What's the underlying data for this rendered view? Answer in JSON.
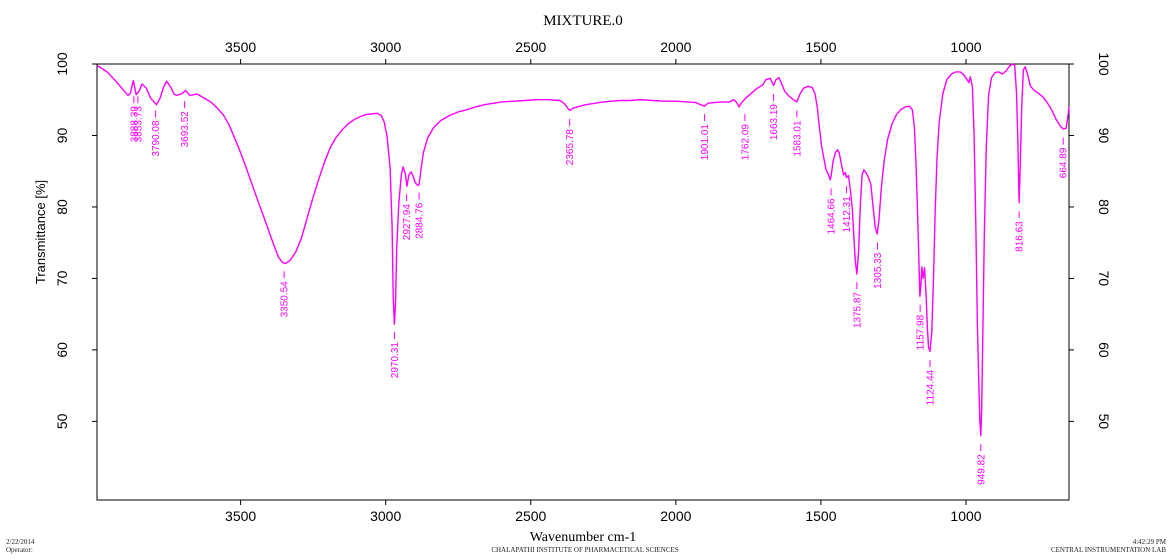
{
  "chart_data": {
    "type": "line",
    "title": "MIXTURE.0",
    "xlabel": "Wavenumber cm-1",
    "ylabel": "Transmittance [%]",
    "xlim": [
      3995,
      645
    ],
    "ylim": [
      39,
      100
    ],
    "x_ticks": [
      3500,
      3000,
      2500,
      2000,
      1500,
      1000
    ],
    "y_ticks": [
      50,
      60,
      70,
      80,
      90,
      100
    ],
    "grid": false,
    "line_color": "#ff00ff",
    "series": [
      {
        "points": [
          [
            3995,
            99.8
          ],
          [
            3960,
            98.9
          ],
          [
            3930,
            97.6
          ],
          [
            3905,
            96.4
          ],
          [
            3888,
            95.6
          ],
          [
            3880,
            95.9
          ],
          [
            3870,
            97.7
          ],
          [
            3860,
            95.7
          ],
          [
            3850,
            96.2
          ],
          [
            3840,
            97.2
          ],
          [
            3825,
            96.6
          ],
          [
            3810,
            95.2
          ],
          [
            3790,
            94.3
          ],
          [
            3778,
            95.2
          ],
          [
            3765,
            96.8
          ],
          [
            3755,
            97.6
          ],
          [
            3740,
            96.7
          ],
          [
            3730,
            95.8
          ],
          [
            3720,
            95.6
          ],
          [
            3700,
            95.9
          ],
          [
            3690,
            96.3
          ],
          [
            3675,
            95.6
          ],
          [
            3650,
            95.8
          ],
          [
            3620,
            95.1
          ],
          [
            3600,
            94.6
          ],
          [
            3580,
            93.8
          ],
          [
            3560,
            92.9
          ],
          [
            3540,
            91.5
          ],
          [
            3520,
            89.6
          ],
          [
            3500,
            87.6
          ],
          [
            3480,
            85.4
          ],
          [
            3460,
            83.1
          ],
          [
            3440,
            80.8
          ],
          [
            3420,
            78.6
          ],
          [
            3400,
            76.3
          ],
          [
            3385,
            74.6
          ],
          [
            3370,
            73.0
          ],
          [
            3355,
            72.2
          ],
          [
            3345,
            72.1
          ],
          [
            3330,
            72.5
          ],
          [
            3310,
            73.7
          ],
          [
            3290,
            75.7
          ],
          [
            3270,
            78.6
          ],
          [
            3250,
            81.4
          ],
          [
            3230,
            84.0
          ],
          [
            3210,
            86.4
          ],
          [
            3190,
            88.4
          ],
          [
            3170,
            89.8
          ],
          [
            3150,
            90.8
          ],
          [
            3130,
            91.6
          ],
          [
            3110,
            92.2
          ],
          [
            3090,
            92.6
          ],
          [
            3070,
            92.9
          ],
          [
            3050,
            93.0
          ],
          [
            3030,
            93.1
          ],
          [
            3015,
            92.8
          ],
          [
            3005,
            91.9
          ],
          [
            2995,
            89.8
          ],
          [
            2985,
            85.5
          ],
          [
            2978,
            77.2
          ],
          [
            2974,
            67.5
          ],
          [
            2970,
            63.6
          ],
          [
            2966,
            66.8
          ],
          [
            2962,
            74.2
          ],
          [
            2955,
            80.5
          ],
          [
            2946,
            84.6
          ],
          [
            2940,
            85.6
          ],
          [
            2932,
            84.6
          ],
          [
            2927,
            82.9
          ],
          [
            2920,
            84.5
          ],
          [
            2912,
            84.9
          ],
          [
            2905,
            84.2
          ],
          [
            2898,
            83.4
          ],
          [
            2890,
            83.0
          ],
          [
            2885,
            83.1
          ],
          [
            2878,
            85.4
          ],
          [
            2870,
            87.6
          ],
          [
            2855,
            89.7
          ],
          [
            2835,
            91.1
          ],
          [
            2810,
            92.1
          ],
          [
            2780,
            92.8
          ],
          [
            2750,
            93.3
          ],
          [
            2720,
            93.6
          ],
          [
            2690,
            94.0
          ],
          [
            2660,
            94.3
          ],
          [
            2630,
            94.5
          ],
          [
            2600,
            94.7
          ],
          [
            2560,
            94.8
          ],
          [
            2520,
            94.9
          ],
          [
            2480,
            95.0
          ],
          [
            2440,
            95.0
          ],
          [
            2400,
            94.9
          ],
          [
            2385,
            94.5
          ],
          [
            2370,
            93.7
          ],
          [
            2365,
            93.5
          ],
          [
            2355,
            93.8
          ],
          [
            2340,
            94.0
          ],
          [
            2310,
            94.3
          ],
          [
            2280,
            94.5
          ],
          [
            2250,
            94.7
          ],
          [
            2220,
            94.8
          ],
          [
            2190,
            94.9
          ],
          [
            2160,
            94.9
          ],
          [
            2120,
            95.0
          ],
          [
            2080,
            94.9
          ],
          [
            2040,
            94.8
          ],
          [
            2000,
            94.8
          ],
          [
            1960,
            94.7
          ],
          [
            1930,
            94.6
          ],
          [
            1915,
            94.3
          ],
          [
            1901,
            94.1
          ],
          [
            1890,
            94.5
          ],
          [
            1870,
            94.6
          ],
          [
            1840,
            94.7
          ],
          [
            1815,
            94.7
          ],
          [
            1800,
            95.0
          ],
          [
            1790,
            94.6
          ],
          [
            1782,
            94.0
          ],
          [
            1775,
            94.5
          ],
          [
            1760,
            95.2
          ],
          [
            1740,
            95.9
          ],
          [
            1720,
            96.6
          ],
          [
            1700,
            97.1
          ],
          [
            1690,
            97.8
          ],
          [
            1675,
            98.0
          ],
          [
            1663,
            97.0
          ],
          [
            1655,
            97.8
          ],
          [
            1645,
            98.1
          ],
          [
            1635,
            97.2
          ],
          [
            1625,
            96.2
          ],
          [
            1610,
            95.5
          ],
          [
            1595,
            95.0
          ],
          [
            1583,
            94.7
          ],
          [
            1572,
            95.8
          ],
          [
            1560,
            96.6
          ],
          [
            1545,
            96.9
          ],
          [
            1530,
            96.7
          ],
          [
            1520,
            95.8
          ],
          [
            1512,
            93.8
          ],
          [
            1505,
            91.0
          ],
          [
            1498,
            88.6
          ],
          [
            1490,
            86.8
          ],
          [
            1482,
            85.2
          ],
          [
            1475,
            84.6
          ],
          [
            1468,
            83.8
          ],
          [
            1465,
            84.3
          ],
          [
            1458,
            86.4
          ],
          [
            1450,
            87.6
          ],
          [
            1443,
            88.0
          ],
          [
            1437,
            87.6
          ],
          [
            1430,
            86.1
          ],
          [
            1422,
            84.5
          ],
          [
            1416,
            84.8
          ],
          [
            1412,
            84.1
          ],
          [
            1405,
            84.4
          ],
          [
            1398,
            82.2
          ],
          [
            1392,
            79.8
          ],
          [
            1387,
            76.2
          ],
          [
            1382,
            72.6
          ],
          [
            1376,
            70.6
          ],
          [
            1370,
            73.8
          ],
          [
            1364,
            80.5
          ],
          [
            1358,
            84.5
          ],
          [
            1352,
            85.2
          ],
          [
            1345,
            84.8
          ],
          [
            1337,
            84.2
          ],
          [
            1328,
            83.2
          ],
          [
            1320,
            80.0
          ],
          [
            1313,
            77.2
          ],
          [
            1306,
            76.2
          ],
          [
            1300,
            78.2
          ],
          [
            1292,
            82.6
          ],
          [
            1282,
            86.5
          ],
          [
            1270,
            89.5
          ],
          [
            1255,
            91.6
          ],
          [
            1240,
            92.9
          ],
          [
            1225,
            93.6
          ],
          [
            1210,
            94.0
          ],
          [
            1195,
            94.1
          ],
          [
            1185,
            93.6
          ],
          [
            1178,
            91.2
          ],
          [
            1173,
            86.8
          ],
          [
            1168,
            80.5
          ],
          [
            1163,
            73.5
          ],
          [
            1159,
            67.5
          ],
          [
            1156,
            68.6
          ],
          [
            1152,
            71.6
          ],
          [
            1148,
            70.0
          ],
          [
            1143,
            71.5
          ],
          [
            1138,
            68.0
          ],
          [
            1133,
            63.0
          ],
          [
            1129,
            60.3
          ],
          [
            1124,
            59.8
          ],
          [
            1118,
            62.5
          ],
          [
            1112,
            70.0
          ],
          [
            1106,
            79.5
          ],
          [
            1100,
            86.8
          ],
          [
            1092,
            92.0
          ],
          [
            1080,
            95.8
          ],
          [
            1066,
            97.8
          ],
          [
            1050,
            98.6
          ],
          [
            1035,
            98.9
          ],
          [
            1020,
            98.9
          ],
          [
            1008,
            98.5
          ],
          [
            998,
            97.9
          ],
          [
            990,
            97.4
          ],
          [
            985,
            98.2
          ],
          [
            978,
            96.8
          ],
          [
            972,
            90.0
          ],
          [
            966,
            77.0
          ],
          [
            961,
            64.0
          ],
          [
            956,
            55.5
          ],
          [
            952,
            50.0
          ],
          [
            949,
            48.0
          ],
          [
            946,
            52.0
          ],
          [
            942,
            62.0
          ],
          [
            937,
            76.0
          ],
          [
            930,
            88.5
          ],
          [
            922,
            95.6
          ],
          [
            912,
            98.1
          ],
          [
            900,
            98.8
          ],
          [
            888,
            98.9
          ],
          [
            875,
            98.6
          ],
          [
            862,
            99.0
          ],
          [
            850,
            99.7
          ],
          [
            840,
            100.0
          ],
          [
            832,
            99.8
          ],
          [
            826,
            96.0
          ],
          [
            821,
            89.0
          ],
          [
            817,
            80.6
          ],
          [
            813,
            86.0
          ],
          [
            808,
            94.0
          ],
          [
            802,
            99.2
          ],
          [
            796,
            99.6
          ],
          [
            788,
            98.6
          ],
          [
            778,
            96.9
          ],
          [
            765,
            96.3
          ],
          [
            750,
            95.9
          ],
          [
            735,
            95.4
          ],
          [
            720,
            94.6
          ],
          [
            705,
            93.6
          ],
          [
            690,
            92.3
          ],
          [
            675,
            91.3
          ],
          [
            665,
            90.9
          ],
          [
            655,
            91.0
          ],
          [
            650,
            92.3
          ],
          [
            645,
            94.0
          ]
        ]
      }
    ],
    "peak_labels": [
      {
        "x": 3868,
        "y": 95.5,
        "text": "3888.39"
      },
      {
        "x": 3854,
        "y": 95.5,
        "text": "3853.73"
      },
      {
        "x": 3793,
        "y": 93.5,
        "text": "3790.08"
      },
      {
        "x": 3693,
        "y": 94.8,
        "text": "3693.52"
      },
      {
        "x": 3350,
        "y": 71.0,
        "text": "3350.54"
      },
      {
        "x": 2970,
        "y": 62.5,
        "text": "2970.31"
      },
      {
        "x": 2928,
        "y": 81.8,
        "text": "2927.94"
      },
      {
        "x": 2885,
        "y": 82.0,
        "text": "2884.76"
      },
      {
        "x": 2366,
        "y": 92.3,
        "text": "2365.78"
      },
      {
        "x": 1901,
        "y": 93.0,
        "text": "1901.01"
      },
      {
        "x": 1762,
        "y": 93.0,
        "text": "1762.09"
      },
      {
        "x": 1663,
        "y": 95.8,
        "text": "1663.19"
      },
      {
        "x": 1583,
        "y": 93.5,
        "text": "1583.01"
      },
      {
        "x": 1465,
        "y": 82.6,
        "text": "1464.66"
      },
      {
        "x": 1412,
        "y": 82.9,
        "text": "1412.31"
      },
      {
        "x": 1376,
        "y": 69.5,
        "text": "1375.87"
      },
      {
        "x": 1305,
        "y": 75.0,
        "text": "1305.33"
      },
      {
        "x": 1158,
        "y": 66.3,
        "text": "1157.98"
      },
      {
        "x": 1124,
        "y": 58.6,
        "text": "1124.44"
      },
      {
        "x": 949,
        "y": 46.8,
        "text": "949.82"
      },
      {
        "x": 817,
        "y": 79.4,
        "text": "816.63"
      },
      {
        "x": 665,
        "y": 89.7,
        "text": "664.89"
      }
    ]
  },
  "footer": {
    "date": "2/22/2014",
    "operator": "Operator:",
    "institute": "CHALAPATHI INSTITUTE OF PHARMACETICAL SCIENCES",
    "time": "4:42:29 PM",
    "lab": "CENTRAL INSTRUMENTATION LAB"
  }
}
